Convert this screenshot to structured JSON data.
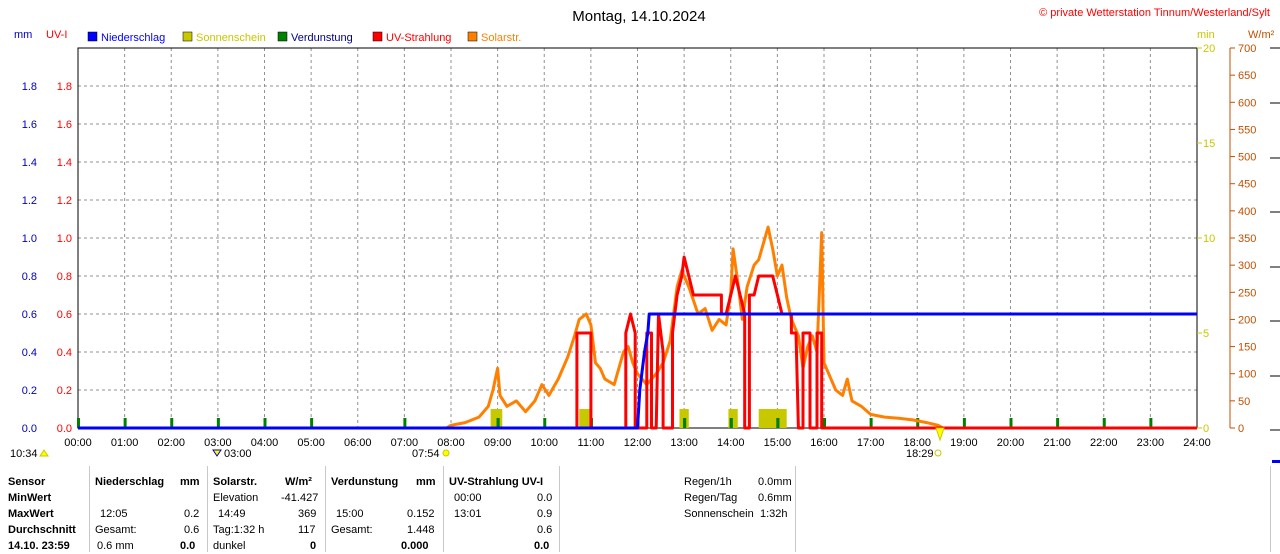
{
  "header": {
    "title": "Montag, 14.10.2024",
    "copyright": "© private Wetterstation Tinnum/Westerland/Sylt"
  },
  "units": {
    "mm": "mm",
    "uvi": "UV-I",
    "min": "min",
    "wm2": "W/m²"
  },
  "legend": [
    {
      "label": "Niederschlag",
      "color": "#0000ff"
    },
    {
      "label": "Sonnenschein",
      "color": "#c8c800"
    },
    {
      "label": "Verdunstung",
      "color": "#008000"
    },
    {
      "label": "UV-Strahlung",
      "color": "#ff0000"
    },
    {
      "label": "Solarstr.",
      "color": "#ff8000"
    }
  ],
  "markers": {
    "sunrise": "07:54",
    "sunset": "18:29",
    "moonrise": "03:00",
    "moonset": "10:34"
  },
  "chart_data": {
    "type": "line",
    "grid": true,
    "x_ticks": [
      "00:00",
      "01:00",
      "02:00",
      "03:00",
      "04:00",
      "05:00",
      "06:00",
      "07:00",
      "08:00",
      "09:00",
      "10:00",
      "11:00",
      "12:00",
      "13:00",
      "14:00",
      "15:00",
      "16:00",
      "17:00",
      "18:00",
      "19:00",
      "20:00",
      "21:00",
      "22:00",
      "23:00",
      "24:00"
    ],
    "x_range_hours": [
      0,
      24
    ],
    "y_left_mm": {
      "range": [
        0,
        2.0
      ],
      "ticks": [
        "0.0",
        "0.2",
        "0.4",
        "0.6",
        "0.8",
        "1.0",
        "1.2",
        "1.4",
        "1.6",
        "1.8"
      ]
    },
    "y_left_uvi": {
      "range": [
        0,
        2.0
      ],
      "ticks": [
        "0.0",
        "0.2",
        "0.4",
        "0.6",
        "0.8",
        "1.0",
        "1.2",
        "1.4",
        "1.6",
        "1.8"
      ]
    },
    "y_right_min": {
      "range": [
        0,
        20
      ],
      "ticks": [
        "0",
        "5",
        "10",
        "15",
        "20"
      ]
    },
    "y_right_wm2": {
      "range": [
        0,
        700
      ],
      "ticks": [
        "0",
        "50",
        "100",
        "150",
        "200",
        "250",
        "300",
        "350",
        "400",
        "450",
        "500",
        "550",
        "600",
        "650",
        "700"
      ]
    },
    "series": [
      {
        "name": "Niederschlag",
        "color": "#0000ff",
        "axis": "mm",
        "points": [
          [
            0,
            0
          ],
          [
            12.0,
            0
          ],
          [
            12.05,
            0.2
          ],
          [
            12.15,
            0.4
          ],
          [
            12.22,
            0.5
          ],
          [
            12.25,
            0.6
          ],
          [
            24,
            0.6
          ]
        ]
      },
      {
        "name": "UV-Strahlung",
        "color": "#ff0000",
        "axis": "uvi",
        "points": [
          [
            0,
            0
          ],
          [
            10.7,
            0
          ],
          [
            10.7,
            0.5
          ],
          [
            11.0,
            0.5
          ],
          [
            11.0,
            0
          ],
          [
            11.75,
            0
          ],
          [
            11.75,
            0.5
          ],
          [
            11.85,
            0.6
          ],
          [
            11.95,
            0.5
          ],
          [
            11.95,
            0
          ],
          [
            12.2,
            0
          ],
          [
            12.2,
            0.5
          ],
          [
            12.3,
            0.5
          ],
          [
            12.3,
            0
          ],
          [
            12.4,
            0
          ],
          [
            12.45,
            0.6
          ],
          [
            12.55,
            0.4
          ],
          [
            12.55,
            0
          ],
          [
            12.75,
            0
          ],
          [
            12.75,
            0.5
          ],
          [
            12.85,
            0.7
          ],
          [
            12.95,
            0.8
          ],
          [
            13.0,
            0.9
          ],
          [
            13.1,
            0.8
          ],
          [
            13.2,
            0.7
          ],
          [
            13.8,
            0.7
          ],
          [
            13.8,
            0.6
          ],
          [
            13.9,
            0.6
          ],
          [
            14.0,
            0.7
          ],
          [
            14.1,
            0.8
          ],
          [
            14.2,
            0.7
          ],
          [
            14.3,
            0.6
          ],
          [
            14.3,
            0
          ],
          [
            14.4,
            0
          ],
          [
            14.4,
            0.7
          ],
          [
            14.5,
            0.7
          ],
          [
            14.6,
            0.8
          ],
          [
            14.9,
            0.8
          ],
          [
            15.0,
            0.7
          ],
          [
            15.1,
            0.6
          ],
          [
            15.3,
            0.6
          ],
          [
            15.3,
            0.5
          ],
          [
            15.4,
            0.5
          ],
          [
            15.45,
            0
          ],
          [
            15.55,
            0
          ],
          [
            15.55,
            0.5
          ],
          [
            15.7,
            0.5
          ],
          [
            15.7,
            0
          ],
          [
            15.85,
            0
          ],
          [
            15.85,
            0.5
          ],
          [
            15.95,
            0.5
          ],
          [
            15.95,
            0
          ],
          [
            24,
            0
          ]
        ]
      },
      {
        "name": "Solarstr.",
        "color": "#ff8000",
        "axis": "wm2",
        "points": [
          [
            7.9,
            0
          ],
          [
            8.0,
            5
          ],
          [
            8.3,
            10
          ],
          [
            8.6,
            20
          ],
          [
            8.8,
            40
          ],
          [
            8.9,
            70
          ],
          [
            9.0,
            110
          ],
          [
            9.05,
            60
          ],
          [
            9.2,
            40
          ],
          [
            9.4,
            50
          ],
          [
            9.6,
            30
          ],
          [
            9.8,
            50
          ],
          [
            9.95,
            80
          ],
          [
            10.1,
            60
          ],
          [
            10.3,
            90
          ],
          [
            10.5,
            130
          ],
          [
            10.65,
            170
          ],
          [
            10.75,
            200
          ],
          [
            10.9,
            210
          ],
          [
            11.0,
            190
          ],
          [
            11.1,
            120
          ],
          [
            11.2,
            110
          ],
          [
            11.3,
            90
          ],
          [
            11.5,
            80
          ],
          [
            11.7,
            140
          ],
          [
            11.8,
            150
          ],
          [
            11.9,
            120
          ],
          [
            12.0,
            100
          ],
          [
            12.2,
            80
          ],
          [
            12.4,
            100
          ],
          [
            12.55,
            120
          ],
          [
            12.7,
            160
          ],
          [
            12.85,
            260
          ],
          [
            12.95,
            290
          ],
          [
            13.1,
            260
          ],
          [
            13.3,
            210
          ],
          [
            13.45,
            220
          ],
          [
            13.6,
            180
          ],
          [
            13.75,
            200
          ],
          [
            13.9,
            190
          ],
          [
            14.0,
            250
          ],
          [
            14.05,
            330
          ],
          [
            14.15,
            270
          ],
          [
            14.25,
            200
          ],
          [
            14.35,
            260
          ],
          [
            14.5,
            300
          ],
          [
            14.6,
            310
          ],
          [
            14.7,
            340
          ],
          [
            14.8,
            370
          ],
          [
            14.9,
            330
          ],
          [
            15.0,
            280
          ],
          [
            15.1,
            300
          ],
          [
            15.2,
            240
          ],
          [
            15.3,
            200
          ],
          [
            15.45,
            170
          ],
          [
            15.55,
            110
          ],
          [
            15.65,
            150
          ],
          [
            15.75,
            170
          ],
          [
            15.85,
            140
          ],
          [
            15.95,
            360
          ],
          [
            16.0,
            120
          ],
          [
            16.1,
            100
          ],
          [
            16.25,
            70
          ],
          [
            16.4,
            60
          ],
          [
            16.5,
            90
          ],
          [
            16.6,
            50
          ],
          [
            16.8,
            40
          ],
          [
            17.0,
            25
          ],
          [
            17.3,
            20
          ],
          [
            17.6,
            18
          ],
          [
            17.9,
            15
          ],
          [
            18.2,
            10
          ],
          [
            18.45,
            5
          ],
          [
            18.55,
            0
          ]
        ]
      }
    ],
    "sunshine_bars": [
      {
        "start": 8.85,
        "end": 9.1,
        "value": 1
      },
      {
        "start": 10.75,
        "end": 11.0,
        "value": 1
      },
      {
        "start": 12.9,
        "end": 13.1,
        "value": 1
      },
      {
        "start": 13.95,
        "end": 14.15,
        "value": 1
      },
      {
        "start": 14.6,
        "end": 15.2,
        "value": 1
      }
    ],
    "evaporation_ticks": [
      0,
      1,
      2,
      3,
      4,
      5,
      7,
      9,
      10,
      11,
      12,
      13,
      14,
      15,
      16,
      17,
      18,
      19,
      20,
      21,
      22,
      23
    ]
  },
  "table": {
    "sensor": {
      "header": "Sensor",
      "rows": [
        "MinWert",
        "MaxWert",
        "Durchschnitt",
        "14.10. 23:59"
      ]
    },
    "niederschlag": {
      "header": "Niederschlag",
      "unit": "mm",
      "max_time": "12:05",
      "max_value": "0.2",
      "gesamt_label": "Gesamt:",
      "gesamt_value": "0.6",
      "last_label": "0.6 mm",
      "last_value": "0.0"
    },
    "solar": {
      "header": "Solarstr.",
      "unit": "W/m²",
      "elev_label": "Elevation",
      "elev_value": "-41.427",
      "max_time": "14:49",
      "max_value": "369",
      "tag_label": "Tag:1:32 h",
      "tag_value": "117",
      "last_label": "dunkel",
      "last_value": "0"
    },
    "verdunstung": {
      "header": "Verdunstung",
      "unit": "mm",
      "max_time": "15:00",
      "max_value": "0.152",
      "gesamt_label": "Gesamt:",
      "gesamt_value": "1.448",
      "last_value": "0.000"
    },
    "uv": {
      "header": "UV-Strahlung UV-I",
      "min_time": "00:00",
      "min_value": "0.0",
      "max_time": "13:01",
      "max_value": "0.9",
      "avg_value": "0.6",
      "last_value": "0.0"
    },
    "summary": {
      "regen1h_label": "Regen/1h",
      "regen1h_value": "0.0mm",
      "regentag_label": "Regen/Tag",
      "regentag_value": "0.6mm",
      "sonne_label": "Sonnenschein",
      "sonne_value": "1:32h"
    }
  }
}
